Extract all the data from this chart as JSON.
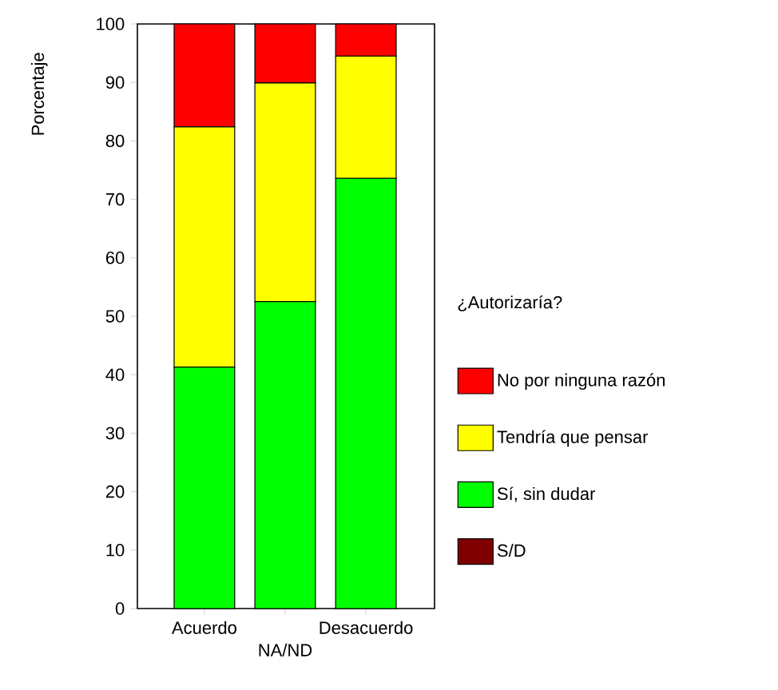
{
  "chart_data": {
    "type": "bar",
    "stacked": true,
    "ylabel": "Porcentaje",
    "legend_title": "¿Autorizaría?",
    "legend": "right",
    "categories": [
      "Acuerdo",
      "NA/ND",
      "Desacuerdo"
    ],
    "ylim": [
      0,
      100
    ],
    "yticks": [
      0,
      10,
      20,
      30,
      40,
      50,
      60,
      70,
      80,
      90,
      100
    ],
    "series": [
      {
        "name": "S/D",
        "color": "#800000",
        "values": [
          0,
          0,
          0
        ]
      },
      {
        "name": "Sí, sin dudar",
        "color": "#00ff00",
        "values": [
          41.3,
          52.5,
          73.6
        ]
      },
      {
        "name": "Tendría que pensar",
        "color": "#ffff00",
        "values": [
          41.1,
          37.4,
          20.9
        ]
      },
      {
        "name": "No por ninguna razón",
        "color": "#ff0000",
        "values": [
          17.6,
          10.1,
          5.5
        ]
      }
    ]
  }
}
